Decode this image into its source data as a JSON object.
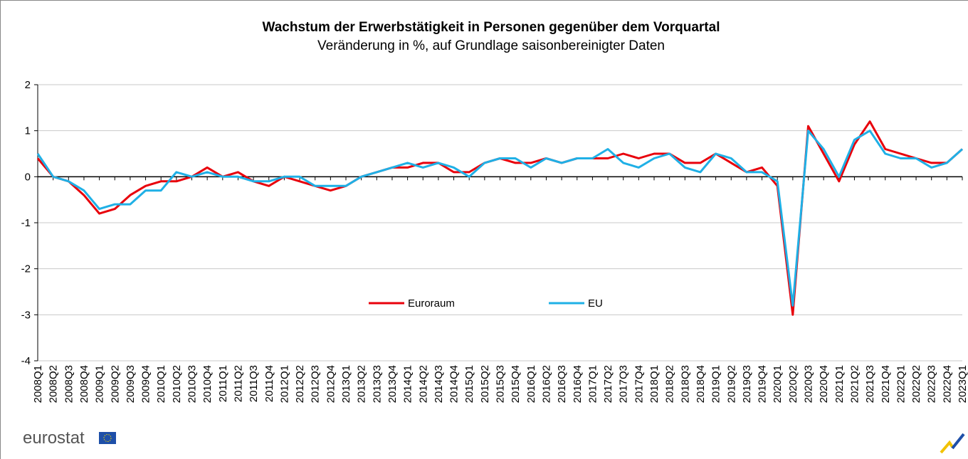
{
  "chart_data": {
    "type": "line",
    "title": "Wachstum der Erwerbstätigkeit in Personen gegenüber dem Vorquartal",
    "subtitle": "Veränderung in %, auf Grundlage saisonbereinigter Daten",
    "categories": [
      "2008Q1",
      "2008Q2",
      "2008Q3",
      "2008Q4",
      "2009Q1",
      "2009Q2",
      "2009Q3",
      "2009Q4",
      "2010Q1",
      "2010Q2",
      "2010Q3",
      "2010Q4",
      "2011Q1",
      "2011Q2",
      "2011Q3",
      "2011Q4",
      "2012Q1",
      "2012Q2",
      "2012Q3",
      "2012Q4",
      "2013Q1",
      "2013Q2",
      "2013Q3",
      "2013Q4",
      "2014Q1",
      "2014Q2",
      "2014Q3",
      "2014Q4",
      "2015Q1",
      "2015Q2",
      "2015Q3",
      "2015Q4",
      "2016Q1",
      "2016Q2",
      "2016Q3",
      "2016Q4",
      "2017Q1",
      "2017Q2",
      "2017Q3",
      "2017Q4",
      "2018Q1",
      "2018Q2",
      "2018Q3",
      "2018Q4",
      "2019Q1",
      "2019Q2",
      "2019Q3",
      "2019Q4",
      "2020Q1",
      "2020Q2",
      "2020Q3",
      "2020Q4",
      "2021Q1",
      "2021Q2",
      "2021Q3",
      "2021Q4",
      "2022Q1",
      "2022Q2",
      "2022Q3",
      "2022Q4",
      "2023Q1"
    ],
    "series": [
      {
        "name": "Euroraum",
        "color": "#e8000b",
        "values": [
          0.4,
          0.0,
          -0.1,
          -0.4,
          -0.8,
          -0.7,
          -0.4,
          -0.2,
          -0.1,
          -0.1,
          0.0,
          0.2,
          0.0,
          0.1,
          -0.1,
          -0.2,
          0.0,
          -0.1,
          -0.2,
          -0.3,
          -0.2,
          0.0,
          0.1,
          0.2,
          0.2,
          0.3,
          0.3,
          0.1,
          0.1,
          0.3,
          0.4,
          0.3,
          0.3,
          0.4,
          0.3,
          0.4,
          0.4,
          0.4,
          0.5,
          0.4,
          0.5,
          0.5,
          0.3,
          0.3,
          0.5,
          0.3,
          0.1,
          0.2,
          -0.2,
          -3.0,
          1.1,
          0.5,
          -0.1,
          0.7,
          1.2,
          0.6,
          0.5,
          0.4,
          0.3,
          0.3,
          0.6
        ]
      },
      {
        "name": "EU",
        "color": "#1fb0e6",
        "values": [
          0.5,
          0.0,
          -0.1,
          -0.3,
          -0.7,
          -0.6,
          -0.6,
          -0.3,
          -0.3,
          0.1,
          0.0,
          0.1,
          0.0,
          0.0,
          -0.1,
          -0.1,
          0.0,
          0.0,
          -0.2,
          -0.2,
          -0.2,
          0.0,
          0.1,
          0.2,
          0.3,
          0.2,
          0.3,
          0.2,
          0.0,
          0.3,
          0.4,
          0.4,
          0.2,
          0.4,
          0.3,
          0.4,
          0.4,
          0.6,
          0.3,
          0.2,
          0.4,
          0.5,
          0.2,
          0.1,
          0.5,
          0.4,
          0.1,
          0.1,
          -0.1,
          -2.8,
          1.0,
          0.6,
          0.0,
          0.8,
          1.0,
          0.5,
          0.4,
          0.4,
          0.2,
          0.3,
          0.6
        ]
      }
    ],
    "ylim": [
      -4,
      2
    ],
    "yticks": [
      -4,
      -3,
      -2,
      -1,
      0,
      1,
      2
    ],
    "grid": true,
    "logo": "eurostat"
  }
}
